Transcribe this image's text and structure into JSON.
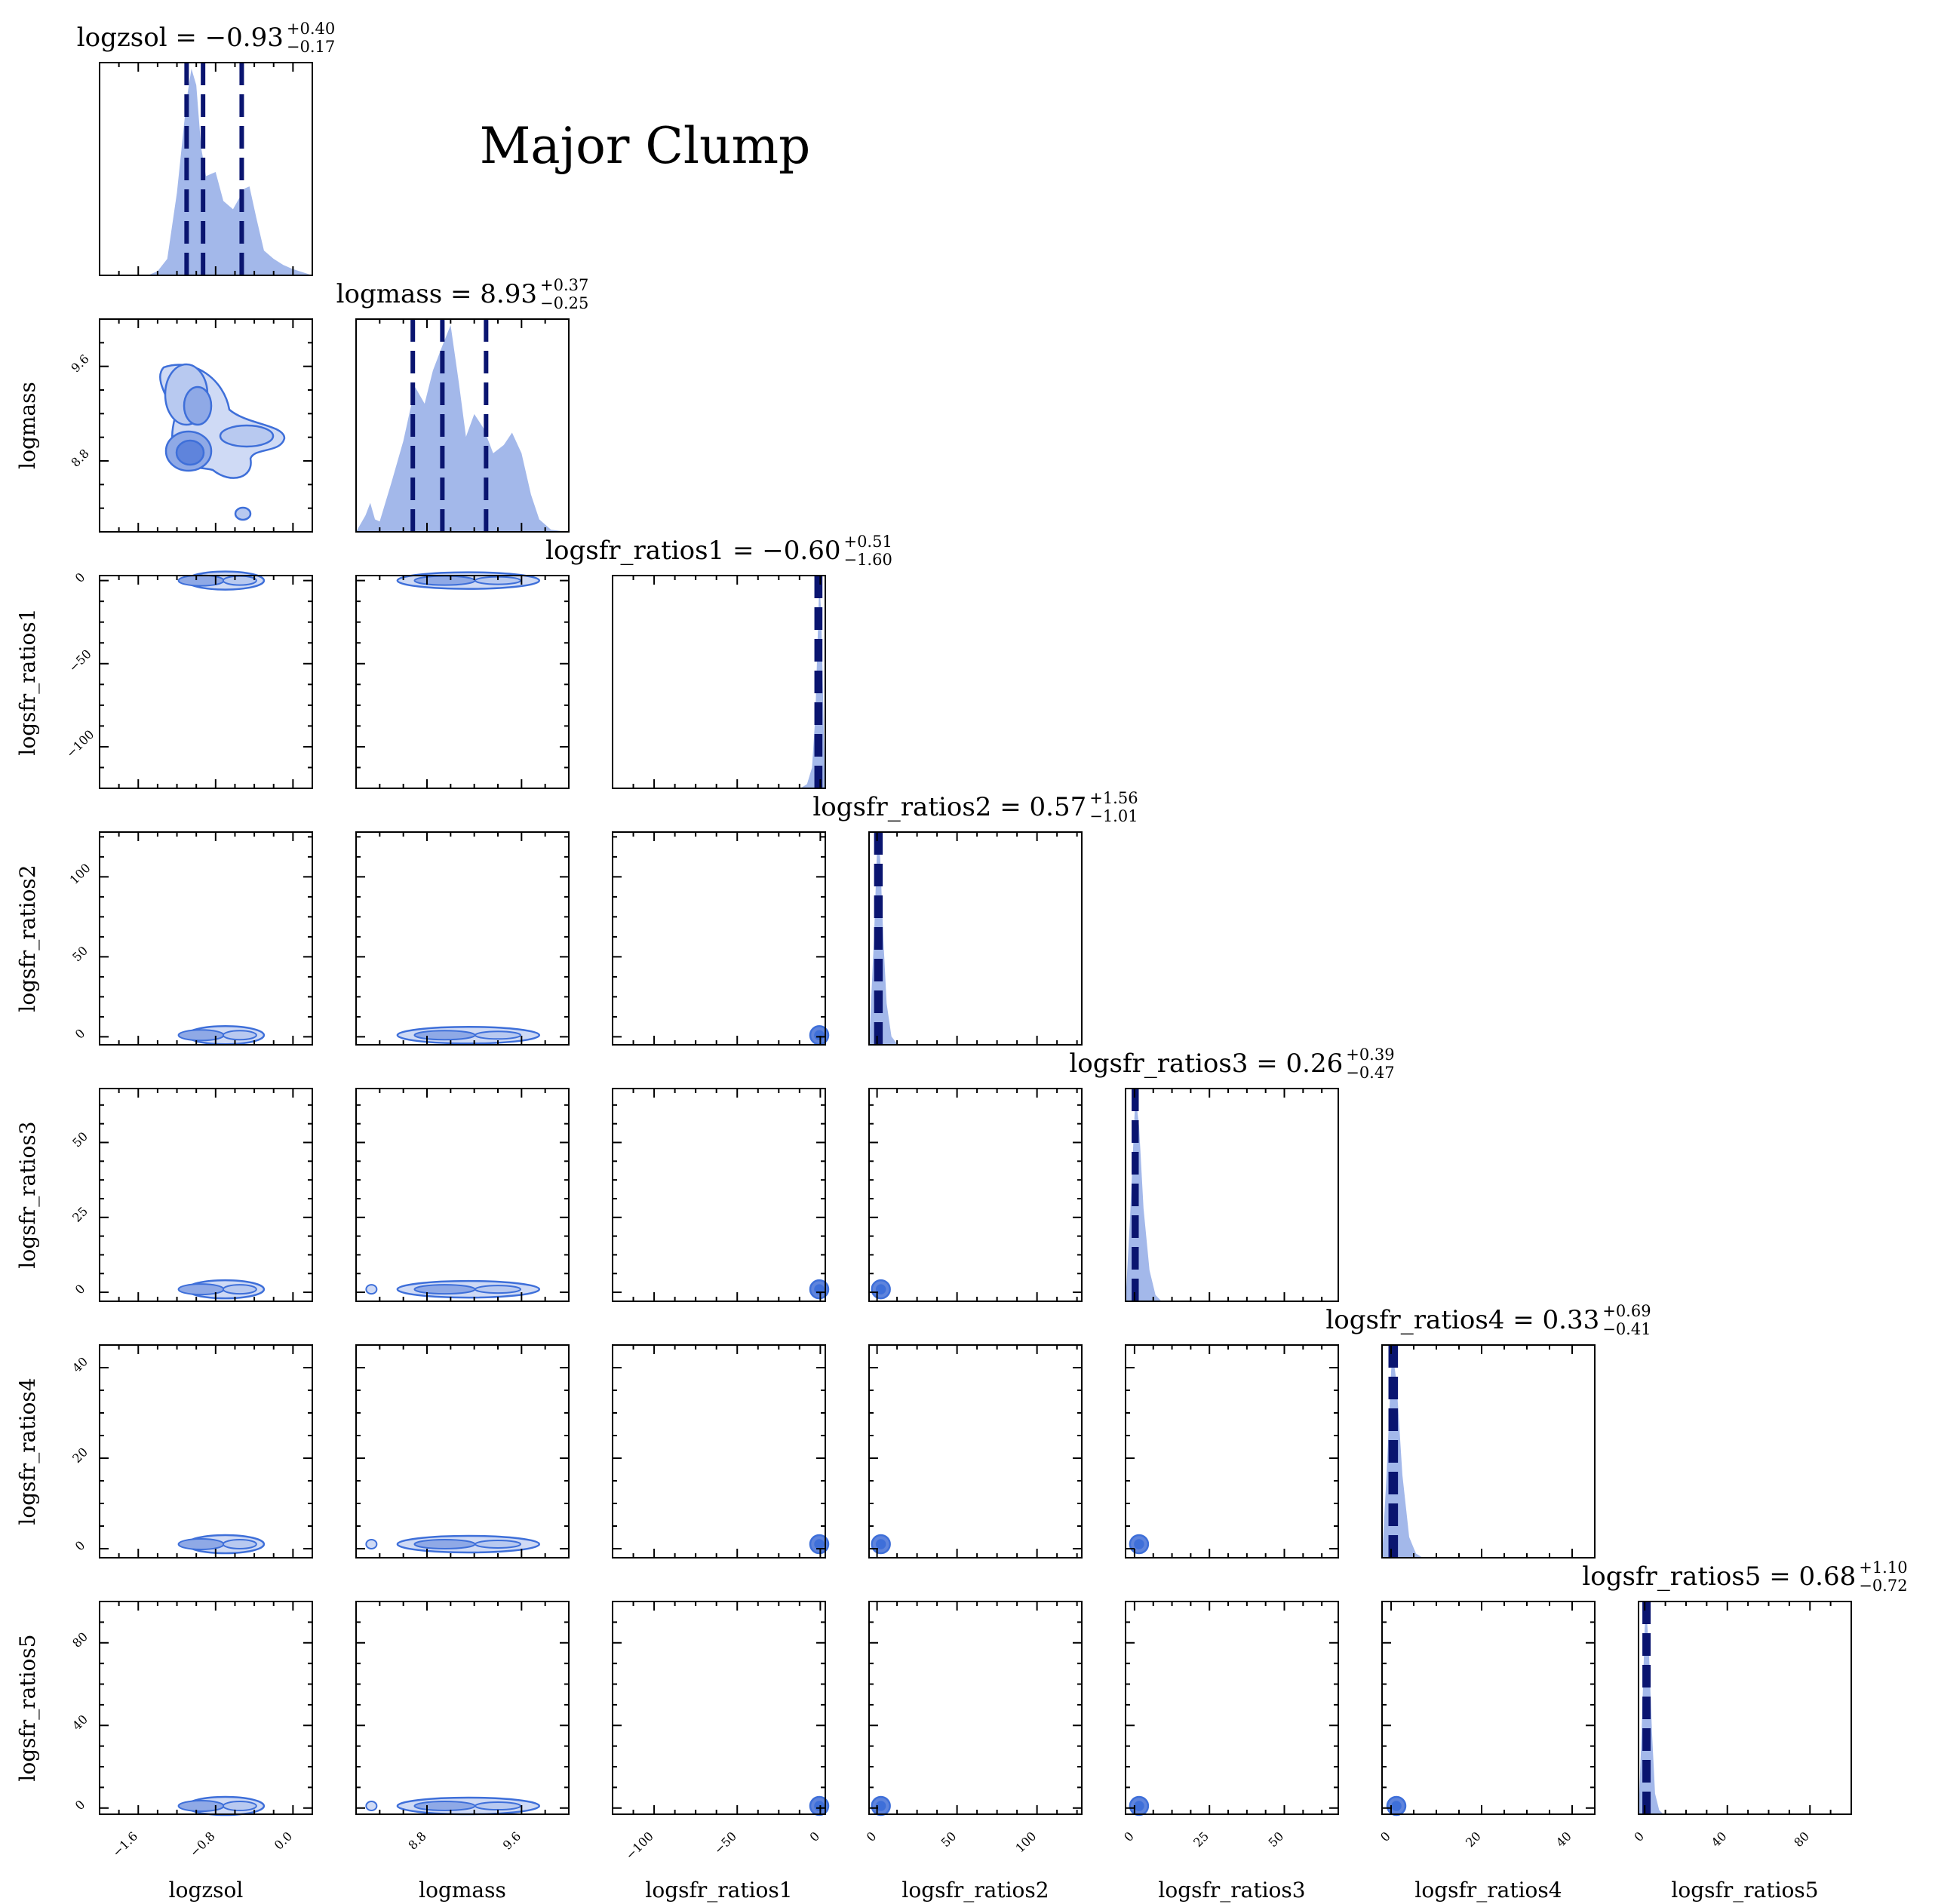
{
  "figure": {
    "suptitle": "Major Clump"
  },
  "chart_data": {
    "type": "corner",
    "parameters": [
      {
        "name": "logzsol",
        "title_main": "logzsol = −0.93",
        "title_sup": "+0.40",
        "title_sub": "−0.17",
        "median": -0.93,
        "err_plus": 0.4,
        "err_minus": 0.17,
        "range": [
          -2.0,
          0.2
        ],
        "ticks": [
          -1.6,
          -0.8,
          0.0
        ],
        "tick_labels": [
          "−1.6",
          "−0.8",
          "0.0"
        ]
      },
      {
        "name": "logmass",
        "title_main": "logmass = 8.93",
        "title_sup": "+0.37",
        "title_sub": "−0.25",
        "median": 8.93,
        "err_plus": 0.37,
        "err_minus": 0.25,
        "range": [
          8.2,
          10.0
        ],
        "ticks": [
          8.8,
          9.6
        ],
        "tick_labels": [
          "8.8",
          "9.6"
        ]
      },
      {
        "name": "logsfr_ratios1",
        "title_main": "logsfr_ratios1 = −0.60",
        "title_sup": "+0.51",
        "title_sub": "−1.60",
        "median": -0.6,
        "err_plus": 0.51,
        "err_minus": 1.6,
        "range": [
          -125,
          3
        ],
        "ticks": [
          -100,
          -50,
          0
        ],
        "tick_labels": [
          "−100",
          "−50",
          "0"
        ]
      },
      {
        "name": "logsfr_ratios2",
        "title_main": "logsfr_ratios2 = 0.57",
        "title_sup": "+1.56",
        "title_sub": "−1.01",
        "median": 0.57,
        "err_plus": 1.56,
        "err_minus": 1.01,
        "range": [
          -5,
          128
        ],
        "ticks": [
          0,
          50,
          100
        ],
        "tick_labels": [
          "0",
          "50",
          "100"
        ]
      },
      {
        "name": "logsfr_ratios3",
        "title_main": "logsfr_ratios3 = 0.26",
        "title_sup": "+0.39",
        "title_sub": "−0.47",
        "median": 0.26,
        "err_plus": 0.39,
        "err_minus": 0.47,
        "range": [
          -3,
          68
        ],
        "ticks": [
          0,
          25,
          50
        ],
        "tick_labels": [
          "0",
          "25",
          "50"
        ]
      },
      {
        "name": "logsfr_ratios4",
        "title_main": "logsfr_ratios4 = 0.33",
        "title_sup": "+0.69",
        "title_sub": "−0.41",
        "median": 0.33,
        "err_plus": 0.69,
        "err_minus": 0.41,
        "range": [
          -2,
          45
        ],
        "ticks": [
          0,
          20,
          40
        ],
        "tick_labels": [
          "0",
          "20",
          "40"
        ]
      },
      {
        "name": "logsfr_ratios5",
        "title_main": "logsfr_ratios5 = 0.68",
        "title_sup": "+1.10",
        "title_sub": "−0.72",
        "median": 0.68,
        "err_plus": 1.1,
        "err_minus": 0.72,
        "range": [
          -3,
          100
        ],
        "ticks": [
          0,
          40,
          80
        ],
        "tick_labels": [
          "0",
          "40",
          "80"
        ]
      }
    ],
    "diagonal_curves": [
      [
        [
          -2.0,
          0
        ],
        [
          -1.5,
          0
        ],
        [
          -1.4,
          0.02
        ],
        [
          -1.3,
          0.08
        ],
        [
          -1.2,
          0.4
        ],
        [
          -1.1,
          0.85
        ],
        [
          -1.05,
          1.0
        ],
        [
          -1.0,
          0.92
        ],
        [
          -0.95,
          0.62
        ],
        [
          -0.9,
          0.48
        ],
        [
          -0.8,
          0.5
        ],
        [
          -0.72,
          0.36
        ],
        [
          -0.62,
          0.32
        ],
        [
          -0.5,
          0.42
        ],
        [
          -0.45,
          0.43
        ],
        [
          -0.38,
          0.28
        ],
        [
          -0.3,
          0.12
        ],
        [
          -0.2,
          0.08
        ],
        [
          -0.1,
          0.05
        ],
        [
          0.0,
          0.03
        ],
        [
          0.2,
          0
        ]
      ],
      [
        [
          8.2,
          0
        ],
        [
          8.28,
          0.08
        ],
        [
          8.32,
          0.14
        ],
        [
          8.36,
          0.06
        ],
        [
          8.4,
          0.05
        ],
        [
          8.5,
          0.24
        ],
        [
          8.6,
          0.44
        ],
        [
          8.7,
          0.7
        ],
        [
          8.78,
          0.62
        ],
        [
          8.85,
          0.78
        ],
        [
          8.93,
          0.9
        ],
        [
          9.0,
          1.0
        ],
        [
          9.07,
          0.72
        ],
        [
          9.13,
          0.46
        ],
        [
          9.2,
          0.57
        ],
        [
          9.28,
          0.5
        ],
        [
          9.36,
          0.38
        ],
        [
          9.45,
          0.42
        ],
        [
          9.52,
          0.48
        ],
        [
          9.6,
          0.38
        ],
        [
          9.68,
          0.18
        ],
        [
          9.75,
          0.06
        ],
        [
          9.85,
          0.01
        ],
        [
          10.0,
          0
        ]
      ],
      [
        [
          -125,
          0
        ],
        [
          -12,
          0
        ],
        [
          -8,
          0.02
        ],
        [
          -5,
          0.1
        ],
        [
          -3,
          0.35
        ],
        [
          -1.5,
          0.75
        ],
        [
          -0.6,
          1.0
        ],
        [
          0.5,
          0.85
        ],
        [
          1.5,
          0.5
        ],
        [
          2.5,
          0.1
        ],
        [
          3,
          0
        ]
      ],
      [
        [
          -5,
          0
        ],
        [
          -2,
          0.5
        ],
        [
          0,
          0.95
        ],
        [
          0.6,
          1.0
        ],
        [
          2,
          0.9
        ],
        [
          4,
          0.5
        ],
        [
          6,
          0.2
        ],
        [
          9,
          0.04
        ],
        [
          13,
          0
        ],
        [
          128,
          0
        ]
      ],
      [
        [
          -3,
          0
        ],
        [
          -1.5,
          0.4
        ],
        [
          0,
          0.9
        ],
        [
          0.3,
          1.0
        ],
        [
          1.5,
          0.85
        ],
        [
          3,
          0.45
        ],
        [
          5,
          0.15
        ],
        [
          7,
          0.03
        ],
        [
          9,
          0
        ],
        [
          68,
          0
        ]
      ],
      [
        [
          -2,
          0
        ],
        [
          -1,
          0.4
        ],
        [
          0,
          0.9
        ],
        [
          0.3,
          1.0
        ],
        [
          1.2,
          0.85
        ],
        [
          2.5,
          0.4
        ],
        [
          4,
          0.1
        ],
        [
          5.5,
          0.02
        ],
        [
          7,
          0
        ],
        [
          45,
          0
        ]
      ],
      [
        [
          -3,
          0
        ],
        [
          -1.5,
          0.4
        ],
        [
          0,
          0.9
        ],
        [
          0.7,
          1.0
        ],
        [
          2,
          0.8
        ],
        [
          3.5,
          0.4
        ],
        [
          5,
          0.1
        ],
        [
          7,
          0.02
        ],
        [
          9,
          0
        ],
        [
          100,
          0
        ]
      ]
    ],
    "colors": {
      "fill": "#a3b8ea",
      "contour_line": "#3e6fd9",
      "contour_fill": "#cfdaf5",
      "quantile_line": "#0a1570",
      "quantile_dash_light": "#a3b8ea"
    }
  }
}
